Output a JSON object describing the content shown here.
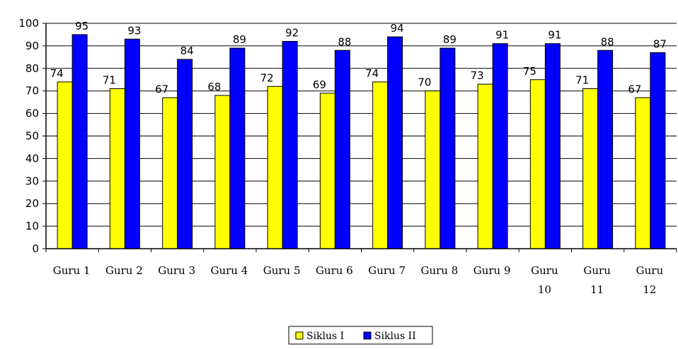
{
  "chart_data": {
    "type": "bar",
    "title": "",
    "xlabel": "",
    "ylabel": "",
    "ylim": [
      0,
      100
    ],
    "yticks": [
      0,
      10,
      20,
      30,
      40,
      50,
      60,
      70,
      80,
      90,
      100
    ],
    "grid": true,
    "legend_position": "bottom-center",
    "categories": [
      [
        "Guru 1"
      ],
      [
        "Guru 2"
      ],
      [
        "Guru 3"
      ],
      [
        "Guru 4"
      ],
      [
        "Guru 5"
      ],
      [
        "Guru 6"
      ],
      [
        "Guru 7"
      ],
      [
        "Guru 8"
      ],
      [
        "Guru 9"
      ],
      [
        "Guru",
        "10"
      ],
      [
        "Guru",
        "11"
      ],
      [
        "Guru",
        "12"
      ]
    ],
    "series": [
      {
        "name": "Siklus I",
        "color": "#ffff00",
        "values": [
          74,
          71,
          67,
          68,
          72,
          69,
          74,
          70,
          73,
          75,
          71,
          67
        ]
      },
      {
        "name": "Siklus II",
        "color": "#0000ff",
        "values": [
          95,
          93,
          84,
          89,
          92,
          88,
          94,
          89,
          91,
          91,
          88,
          87
        ]
      }
    ]
  }
}
